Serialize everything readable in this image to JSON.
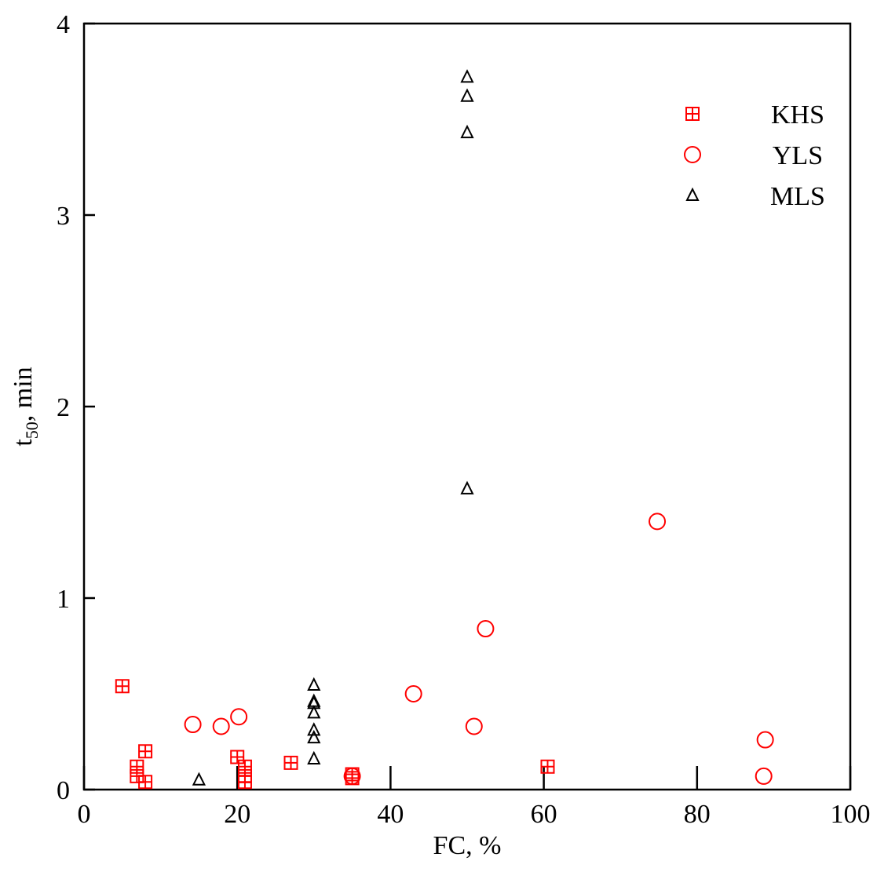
{
  "chart_data": {
    "type": "scatter",
    "xlabel": "FC, %",
    "ylabel": {
      "base": "t",
      "subscript": "50",
      "rest": ", min"
    },
    "xlim": [
      0,
      100
    ],
    "ylim": [
      0,
      4
    ],
    "xticks": [
      0,
      20,
      40,
      60,
      80,
      100
    ],
    "yticks": [
      0,
      1,
      2,
      3,
      4
    ],
    "legend": "upper right",
    "series": [
      {
        "name": "KHS",
        "color": "#ff0000",
        "marker": "square-plus",
        "x": [
          5,
          6.9,
          6.9,
          8,
          8,
          20,
          21,
          21,
          21,
          27,
          35,
          35,
          60.5
        ],
        "values": [
          0.54,
          0.12,
          0.07,
          0.2,
          0.04,
          0.17,
          0.12,
          0.07,
          0.04,
          0.14,
          0.08,
          0.06,
          0.12
        ]
      },
      {
        "name": "YLS",
        "color": "#ff0000",
        "marker": "circle",
        "x": [
          14.2,
          17.9,
          20.2,
          35,
          43,
          50.9,
          52.4,
          74.8,
          88.9,
          88.7
        ],
        "values": [
          0.34,
          0.33,
          0.38,
          0.07,
          0.5,
          0.33,
          0.84,
          1.4,
          0.26,
          0.07
        ]
      },
      {
        "name": "MLS",
        "color": "#000000",
        "marker": "triangle",
        "x": [
          15,
          30,
          30,
          30,
          30,
          30,
          30,
          30,
          50,
          50,
          50,
          50
        ],
        "values": [
          0.05,
          0.545,
          0.46,
          0.45,
          0.4,
          0.31,
          0.27,
          0.16,
          3.72,
          3.62,
          3.43,
          1.57
        ]
      }
    ]
  }
}
